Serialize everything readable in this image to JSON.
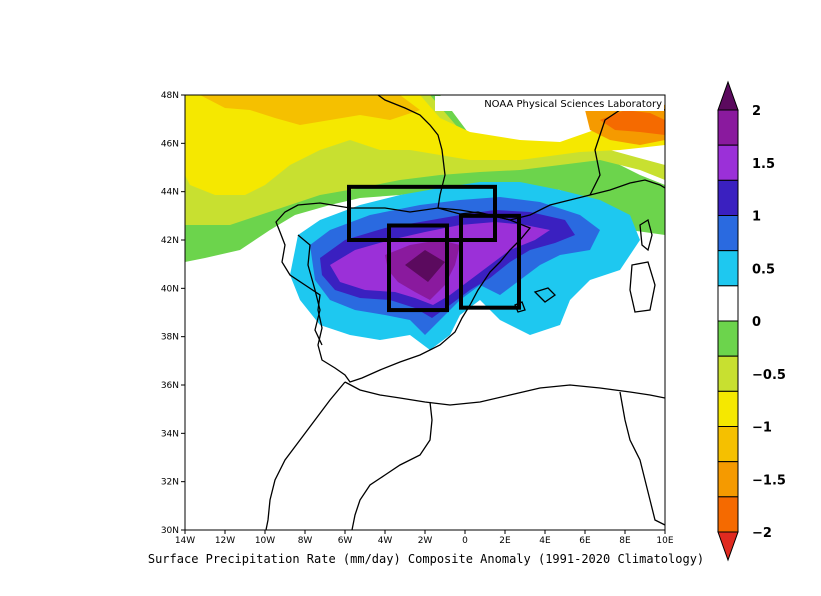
{
  "credit": "NOAA Physical Sciences Laboratory",
  "caption": "Surface Precipitation Rate (mm/day) Composite Anomaly (1991-2020 Climatology)",
  "lat_labels": [
    "48N",
    "46N",
    "44N",
    "42N",
    "40N",
    "38N",
    "36N",
    "34N",
    "32N",
    "30N"
  ],
  "lon_labels": [
    "14W",
    "12W",
    "10W",
    "8W",
    "6W",
    "4W",
    "2W",
    "0",
    "2E",
    "4E",
    "6E",
    "8E",
    "10E"
  ],
  "colorbar": {
    "labels": [
      "2",
      "1.5",
      "1",
      "0.5",
      "0",
      "-0.5",
      "-1",
      "-1.5",
      "-2"
    ],
    "colors": [
      "#5b0a5e",
      "#8a1a9e",
      "#9b30d8",
      "#3a20c0",
      "#2a6ae0",
      "#1ec8f0",
      "#ffffff",
      "#6cd44c",
      "#c8e030",
      "#f5e800",
      "#f5c000",
      "#f59a00",
      "#f56a00",
      "#e02a20"
    ]
  },
  "map": {
    "lon_range": [
      -14,
      10
    ],
    "lat_range": [
      30,
      48
    ],
    "boxes": [
      {
        "lon": [
          -5.8,
          1.5
        ],
        "lat": [
          42.0,
          44.2
        ]
      },
      {
        "lon": [
          -3.8,
          -0.9
        ],
        "lat": [
          39.1,
          42.6
        ]
      },
      {
        "lon": [
          -0.2,
          2.7
        ],
        "lat": [
          39.2,
          43.0
        ]
      }
    ]
  }
}
